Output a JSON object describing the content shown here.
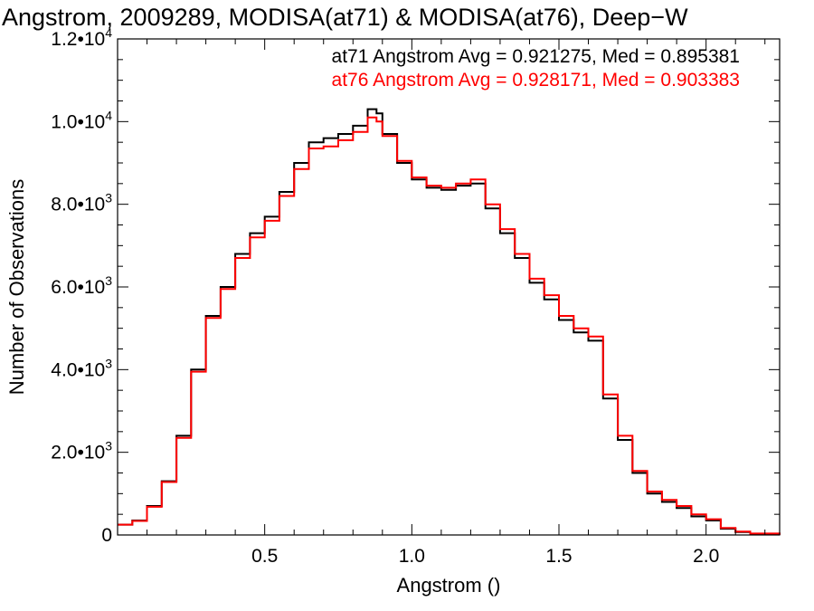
{
  "chart_data": {
    "type": "line",
    "title": "Angstrom, 2009289, MODISA(at71) & MODISA(at76), Deep−W",
    "xlabel": "Angstrom ()",
    "ylabel": "Number of Observations",
    "xlim": [
      0.0,
      2.25
    ],
    "ylim": [
      0,
      12000
    ],
    "x_ticks": [
      {
        "value": 0.5,
        "label": "0.5"
      },
      {
        "value": 1.0,
        "label": "1.0"
      },
      {
        "value": 1.5,
        "label": "1.5"
      },
      {
        "value": 2.0,
        "label": "2.0"
      }
    ],
    "y_ticks": [
      {
        "value": 0,
        "mantissa": "0",
        "exponent": ""
      },
      {
        "value": 2000,
        "mantissa": "2.0•10",
        "exponent": "3"
      },
      {
        "value": 4000,
        "mantissa": "4.0•10",
        "exponent": "3"
      },
      {
        "value": 6000,
        "mantissa": "6.0•10",
        "exponent": "3"
      },
      {
        "value": 8000,
        "mantissa": "8.0•10",
        "exponent": "3"
      },
      {
        "value": 10000,
        "mantissa": "1.0•10",
        "exponent": "4"
      },
      {
        "value": 12000,
        "mantissa": "1.2•10",
        "exponent": "4"
      }
    ],
    "grid": false,
    "legend": [
      {
        "text": "at71 Angstrom Avg = 0.921275, Med = 0.895381",
        "color": "#000000"
      },
      {
        "text": "at76 Angstrom Avg = 0.928171, Med = 0.903383",
        "color": "#ff0000"
      }
    ],
    "series": [
      {
        "color": "#000000",
        "style": "step",
        "points": [
          [
            0.0,
            250
          ],
          [
            0.05,
            350
          ],
          [
            0.1,
            700
          ],
          [
            0.15,
            1300
          ],
          [
            0.2,
            2400
          ],
          [
            0.25,
            4000
          ],
          [
            0.3,
            5300
          ],
          [
            0.35,
            6000
          ],
          [
            0.4,
            6800
          ],
          [
            0.45,
            7300
          ],
          [
            0.5,
            7700
          ],
          [
            0.55,
            8300
          ],
          [
            0.6,
            9000
          ],
          [
            0.65,
            9500
          ],
          [
            0.7,
            9600
          ],
          [
            0.75,
            9700
          ],
          [
            0.8,
            9900
          ],
          [
            0.85,
            10300
          ],
          [
            0.88,
            10200
          ],
          [
            0.9,
            9700
          ],
          [
            0.95,
            9000
          ],
          [
            1.0,
            8600
          ],
          [
            1.05,
            8400
          ],
          [
            1.1,
            8350
          ],
          [
            1.15,
            8450
          ],
          [
            1.2,
            8500
          ],
          [
            1.25,
            7900
          ],
          [
            1.3,
            7300
          ],
          [
            1.35,
            6700
          ],
          [
            1.4,
            6100
          ],
          [
            1.45,
            5700
          ],
          [
            1.5,
            5200
          ],
          [
            1.55,
            4900
          ],
          [
            1.6,
            4700
          ],
          [
            1.65,
            3300
          ],
          [
            1.7,
            2300
          ],
          [
            1.75,
            1500
          ],
          [
            1.8,
            1000
          ],
          [
            1.85,
            800
          ],
          [
            1.9,
            650
          ],
          [
            1.95,
            450
          ],
          [
            2.0,
            350
          ],
          [
            2.05,
            150
          ],
          [
            2.1,
            70
          ],
          [
            2.15,
            30
          ],
          [
            2.25,
            0
          ]
        ]
      },
      {
        "color": "#ff0000",
        "style": "step",
        "points": [
          [
            0.0,
            250
          ],
          [
            0.05,
            340
          ],
          [
            0.1,
            680
          ],
          [
            0.15,
            1280
          ],
          [
            0.2,
            2350
          ],
          [
            0.25,
            3950
          ],
          [
            0.3,
            5250
          ],
          [
            0.35,
            5950
          ],
          [
            0.4,
            6700
          ],
          [
            0.45,
            7200
          ],
          [
            0.5,
            7600
          ],
          [
            0.55,
            8200
          ],
          [
            0.6,
            8850
          ],
          [
            0.65,
            9350
          ],
          [
            0.7,
            9400
          ],
          [
            0.75,
            9550
          ],
          [
            0.8,
            9750
          ],
          [
            0.85,
            10100
          ],
          [
            0.88,
            10000
          ],
          [
            0.9,
            9650
          ],
          [
            0.95,
            9050
          ],
          [
            1.0,
            8650
          ],
          [
            1.05,
            8450
          ],
          [
            1.1,
            8400
          ],
          [
            1.15,
            8500
          ],
          [
            1.2,
            8600
          ],
          [
            1.25,
            8000
          ],
          [
            1.3,
            7400
          ],
          [
            1.35,
            6800
          ],
          [
            1.4,
            6200
          ],
          [
            1.45,
            5800
          ],
          [
            1.5,
            5300
          ],
          [
            1.55,
            5000
          ],
          [
            1.6,
            4800
          ],
          [
            1.65,
            3400
          ],
          [
            1.7,
            2400
          ],
          [
            1.75,
            1550
          ],
          [
            1.8,
            1050
          ],
          [
            1.85,
            850
          ],
          [
            1.9,
            700
          ],
          [
            1.95,
            500
          ],
          [
            2.0,
            380
          ],
          [
            2.05,
            170
          ],
          [
            2.1,
            80
          ],
          [
            2.15,
            35
          ],
          [
            2.25,
            0
          ]
        ]
      }
    ]
  }
}
